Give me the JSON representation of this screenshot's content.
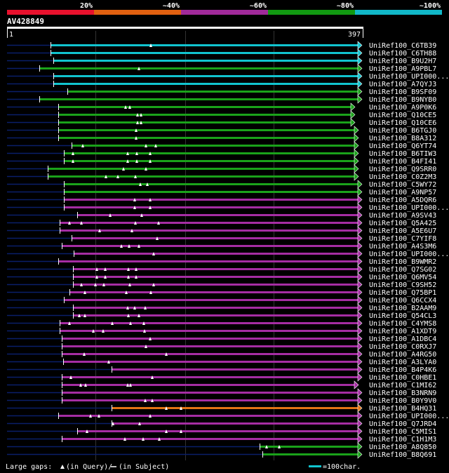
{
  "scale": {
    "labels": [
      "20%",
      "~40%",
      "~60%",
      "~80%",
      "~100%"
    ],
    "colors": [
      "#e8112d",
      "#e06010",
      "#a02a9a",
      "#119911",
      "#11b8c8"
    ]
  },
  "query": {
    "name": "AV428849",
    "start": "1",
    "end": "397",
    "length": 397
  },
  "colors": {
    "cyan": "#11c4cf",
    "green": "#1aa21a",
    "magenta": "#a52da3",
    "orange": "#e27414",
    "navy": "#0a1e6a",
    "grid": "#333333"
  },
  "hits": [
    {
      "label": "UniRef100_C6TB39",
      "color": "cyan",
      "start": 72,
      "end": 510,
      "ext_start": 10,
      "gaps": [
        215
      ],
      "marks": []
    },
    {
      "label": "UniRef100_C6TH88",
      "color": "cyan",
      "start": 72,
      "end": 510,
      "ext_start": 10,
      "gaps": [],
      "marks": []
    },
    {
      "label": "UniRef100_B9U2H7",
      "color": "cyan",
      "start": 76,
      "end": 510,
      "ext_start": 10,
      "gaps": [],
      "marks": []
    },
    {
      "label": "UniRef100_A9PBL7",
      "color": "green",
      "start": 56,
      "end": 510,
      "ext_start": 10,
      "gaps": [
        198
      ],
      "marks": []
    },
    {
      "label": "UniRef100_UPI000...",
      "color": "cyan",
      "start": 76,
      "end": 510,
      "ext_start": 10,
      "gaps": [],
      "marks": []
    },
    {
      "label": "UniRef100_A7QYJ3",
      "color": "cyan",
      "start": 76,
      "end": 510,
      "ext_start": 10,
      "gaps": [],
      "marks": []
    },
    {
      "label": "UniRef100_B9SF09",
      "color": "green",
      "start": 96,
      "end": 510,
      "ext_start": 10,
      "gaps": [],
      "marks": []
    },
    {
      "label": "UniRef100_B9NYB0",
      "color": "green",
      "start": 56,
      "end": 510,
      "ext_start": 10,
      "gaps": [],
      "marks": []
    },
    {
      "label": "UniRef100_A9P0K6",
      "color": "green",
      "start": 83,
      "end": 500,
      "ext_start": 10,
      "gaps": [
        179,
        185
      ],
      "marks": []
    },
    {
      "label": "UniRef100_Q10CE5",
      "color": "green",
      "start": 83,
      "end": 500,
      "ext_start": 10,
      "gaps": [
        196,
        201
      ],
      "marks": []
    },
    {
      "label": "UniRef100_Q10CE6",
      "color": "green",
      "start": 83,
      "end": 500,
      "ext_start": 10,
      "gaps": [
        196,
        201
      ],
      "marks": []
    },
    {
      "label": "UniRef100_B6TGJ0",
      "color": "green",
      "start": 83,
      "end": 505,
      "ext_start": 10,
      "gaps": [
        194
      ],
      "marks": []
    },
    {
      "label": "UniRef100_B8A312",
      "color": "green",
      "start": 83,
      "end": 505,
      "ext_start": 10,
      "gaps": [
        194
      ],
      "marks": []
    },
    {
      "label": "UniRef100_Q6YT74",
      "color": "green",
      "start": 102,
      "end": 505,
      "ext_start": 10,
      "gaps": [
        118,
        208,
        222
      ],
      "marks": []
    },
    {
      "label": "UniRef100_B6TIW3",
      "color": "green",
      "start": 91,
      "end": 505,
      "ext_start": 10,
      "gaps": [
        104,
        182,
        195,
        214
      ],
      "marks": []
    },
    {
      "label": "UniRef100_B4FI41",
      "color": "green",
      "start": 91,
      "end": 505,
      "ext_start": 10,
      "gaps": [
        104,
        182,
        195,
        214
      ],
      "marks": []
    },
    {
      "label": "UniRef100_Q9SRR0",
      "color": "green",
      "start": 68,
      "end": 505,
      "ext_start": 10,
      "gaps": [
        176,
        208
      ],
      "marks": []
    },
    {
      "label": "UniRef100_C0Z2M3",
      "color": "green",
      "start": 68,
      "end": 505,
      "ext_start": 10,
      "gaps": [
        151,
        168,
        193
      ],
      "marks": []
    },
    {
      "label": "UniRef100_C5WY72",
      "color": "green",
      "start": 91,
      "end": 510,
      "ext_start": 10,
      "gaps": [
        200,
        210
      ],
      "marks": []
    },
    {
      "label": "UniRef100_A9NP57",
      "color": "green",
      "start": 91,
      "end": 510,
      "ext_start": 10,
      "gaps": [],
      "marks": []
    },
    {
      "label": "UniRef100_A5DQR6",
      "color": "magenta",
      "start": 91,
      "end": 510,
      "ext_start": 10,
      "gaps": [
        192,
        214
      ],
      "marks": []
    },
    {
      "label": "UniRef100_UPI000...",
      "color": "magenta",
      "start": 91,
      "end": 510,
      "ext_start": 10,
      "gaps": [
        192,
        214
      ],
      "marks": []
    },
    {
      "label": "UniRef100_A9SV43",
      "color": "magenta",
      "start": 110,
      "end": 510,
      "ext_start": 10,
      "gaps": [
        157,
        202
      ],
      "marks": []
    },
    {
      "label": "UniRef100_Q5A425",
      "color": "magenta",
      "start": 85,
      "end": 510,
      "ext_start": 10,
      "gaps": [
        99,
        116,
        193,
        226
      ],
      "marks": []
    },
    {
      "label": "UniRef100_A5E6U7",
      "color": "magenta",
      "start": 85,
      "end": 510,
      "ext_start": 10,
      "gaps": [
        142,
        188
      ],
      "marks": []
    },
    {
      "label": "UniRef100_C7YIF8",
      "color": "magenta",
      "start": 102,
      "end": 510,
      "ext_start": 10,
      "gaps": [
        224
      ],
      "marks": []
    },
    {
      "label": "UniRef100_A4S3M6",
      "color": "magenta",
      "start": 88,
      "end": 510,
      "ext_start": 10,
      "gaps": [
        173,
        184,
        198
      ],
      "marks": []
    },
    {
      "label": "UniRef100_UPI000...",
      "color": "magenta",
      "start": 105,
      "end": 510,
      "ext_start": 10,
      "gaps": [
        219
      ],
      "marks": []
    },
    {
      "label": "UniRef100_B9WMR2",
      "color": "magenta",
      "start": 83,
      "end": 510,
      "ext_start": 10,
      "gaps": [],
      "marks": []
    },
    {
      "label": "UniRef100_Q7SG02",
      "color": "magenta",
      "start": 104,
      "end": 510,
      "ext_start": 10,
      "gaps": [
        138,
        150,
        183,
        194
      ],
      "marks": []
    },
    {
      "label": "UniRef100_Q6MV54",
      "color": "magenta",
      "start": 104,
      "end": 510,
      "ext_start": 10,
      "gaps": [
        138,
        150,
        183,
        194
      ],
      "marks": []
    },
    {
      "label": "UniRef100_C9SH52",
      "color": "magenta",
      "start": 104,
      "end": 510,
      "ext_start": 10,
      "gaps": [
        116,
        136,
        148,
        185,
        219
      ],
      "marks": []
    },
    {
      "label": "UniRef100_Q75BP1",
      "color": "magenta",
      "start": 99,
      "end": 510,
      "ext_start": 10,
      "gaps": [
        121,
        180,
        215
      ],
      "marks": []
    },
    {
      "label": "UniRef100_Q6CCX4",
      "color": "magenta",
      "start": 91,
      "end": 510,
      "ext_start": 10,
      "gaps": [],
      "marks": []
    },
    {
      "label": "UniRef100_B2AAM9",
      "color": "magenta",
      "start": 104,
      "end": 510,
      "ext_start": 10,
      "gaps": [
        182,
        192,
        207
      ],
      "marks": []
    },
    {
      "label": "UniRef100_Q54CL3",
      "color": "magenta",
      "start": 104,
      "end": 510,
      "ext_start": 10,
      "gaps": [
        113,
        121,
        183,
        198
      ],
      "marks": []
    },
    {
      "label": "UniRef100_C4YMS8",
      "color": "magenta",
      "start": 85,
      "end": 510,
      "ext_start": 10,
      "gaps": [
        99,
        160,
        186,
        205
      ],
      "marks": []
    },
    {
      "label": "UniRef100_A1XDT9",
      "color": "magenta",
      "start": 85,
      "end": 510,
      "ext_start": 10,
      "gaps": [
        133,
        147,
        206
      ],
      "marks": []
    },
    {
      "label": "UniRef100_A1DBC4",
      "color": "magenta",
      "start": 88,
      "end": 510,
      "ext_start": 10,
      "gaps": [
        214
      ],
      "marks": []
    },
    {
      "label": "UniRef100_C0RXJ7",
      "color": "magenta",
      "start": 88,
      "end": 510,
      "ext_start": 10,
      "gaps": [
        208
      ],
      "marks": []
    },
    {
      "label": "UniRef100_A4RG50",
      "color": "magenta",
      "start": 88,
      "end": 510,
      "ext_start": 10,
      "gaps": [
        120,
        237
      ],
      "marks": []
    },
    {
      "label": "UniRef100_A3LYA0",
      "color": "magenta",
      "start": 90,
      "end": 510,
      "ext_start": 10,
      "gaps": [
        155
      ],
      "marks": []
    },
    {
      "label": "UniRef100_B4P4K6",
      "color": "magenta",
      "start": 159,
      "end": 510,
      "ext_start": 10,
      "gaps": [],
      "marks": []
    },
    {
      "label": "UniRef100_C0HBE1",
      "color": "magenta",
      "start": 88,
      "end": 510,
      "ext_start": 10,
      "gaps": [
        101,
        217
      ],
      "marks": []
    },
    {
      "label": "UniRef100_C1MI62",
      "color": "magenta",
      "start": 88,
      "end": 505,
      "ext_start": 10,
      "gaps": [
        115,
        122,
        182,
        186
      ],
      "marks": []
    },
    {
      "label": "UniRef100_B3NRN9",
      "color": "magenta",
      "start": 88,
      "end": 510,
      "ext_start": 10,
      "gaps": [],
      "marks": []
    },
    {
      "label": "UniRef100_B0Y9V0",
      "color": "magenta",
      "start": 88,
      "end": 510,
      "ext_start": 10,
      "gaps": [
        207,
        217
      ],
      "marks": []
    },
    {
      "label": "UniRef100_B4HQ31",
      "color": "orange",
      "start": 159,
      "end": 510,
      "ext_start": 10,
      "gaps": [
        237,
        258
      ],
      "marks": []
    },
    {
      "label": "UniRef100_UPI000...",
      "color": "magenta",
      "start": 83,
      "end": 510,
      "ext_start": 10,
      "gaps": [
        129,
        141,
        214
      ],
      "marks": []
    },
    {
      "label": "UniRef100_Q7JRD4",
      "color": "magenta",
      "start": 159,
      "end": 510,
      "ext_start": 10,
      "gaps": [
        161,
        199
      ],
      "marks": []
    },
    {
      "label": "UniRef100_C5MIS1",
      "color": "magenta",
      "start": 110,
      "end": 510,
      "ext_start": 10,
      "gaps": [
        124,
        237,
        258
      ],
      "marks": []
    },
    {
      "label": "UniRef100_C1H1M3",
      "color": "magenta",
      "start": 88,
      "end": 510,
      "ext_start": 10,
      "gaps": [
        178,
        204,
        227
      ],
      "marks": []
    },
    {
      "label": "UniRef100_A8Q850",
      "color": "green",
      "start": 370,
      "end": 510,
      "ext_start": 10,
      "gaps": [
        380,
        398
      ],
      "marks": []
    },
    {
      "label": "UniRef100_B8Q691",
      "color": "green",
      "start": 374,
      "end": 510,
      "ext_start": 10,
      "gaps": [],
      "marks": []
    }
  ],
  "footer": {
    "gaps_label": "Large gaps:",
    "query_part": "(in Query)/",
    "subject_part": "(in Subject)",
    "scale_text": "=100char."
  }
}
